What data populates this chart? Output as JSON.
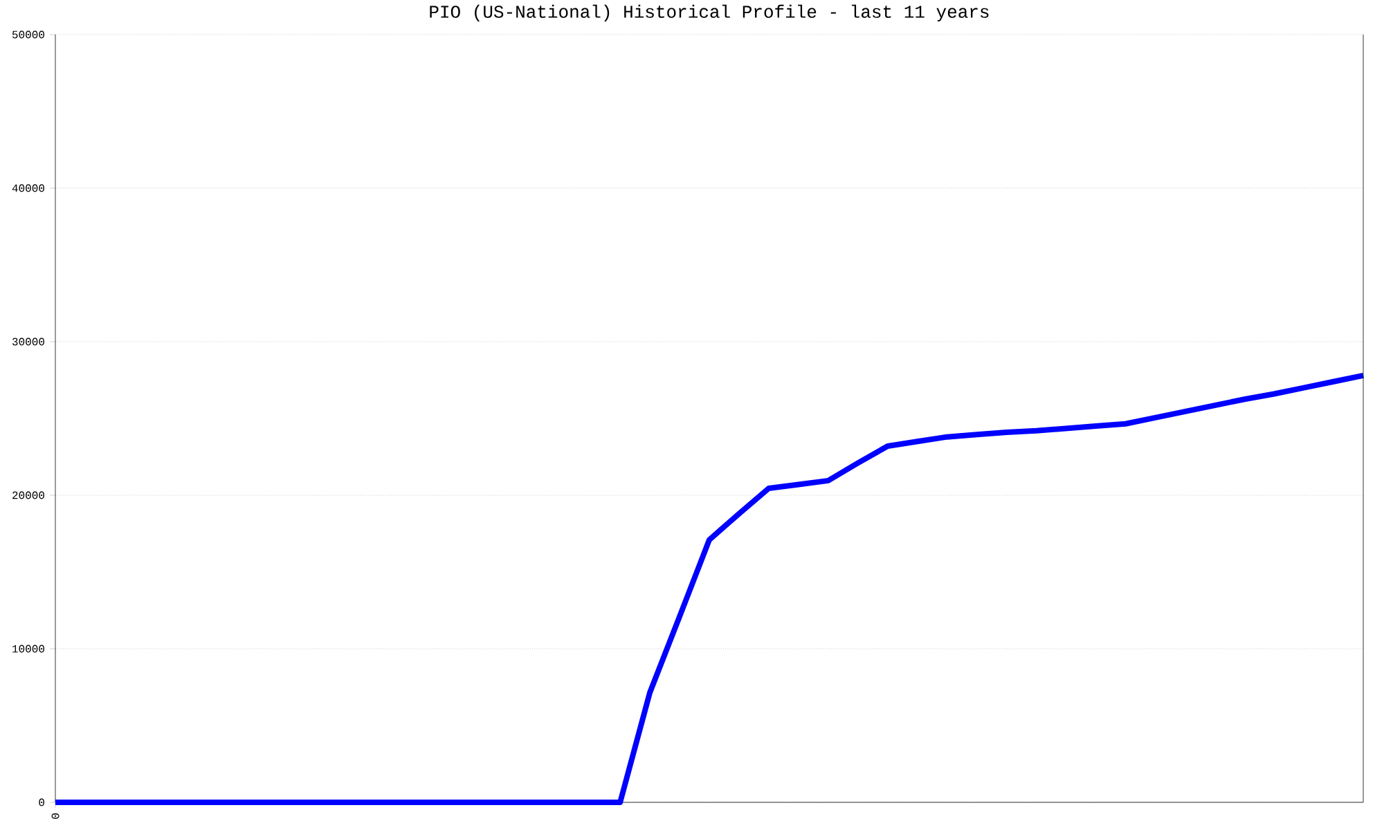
{
  "chart_data": {
    "type": "line",
    "title": "PIO (US-National) Historical Profile - last 11 years",
    "categories": [
      "0",
      null,
      null,
      null,
      null,
      null,
      null,
      null,
      null,
      null,
      null,
      null,
      null,
      null,
      null,
      null,
      null,
      null,
      null,
      null,
      null,
      null,
      null,
      null,
      null,
      null,
      null,
      null,
      null,
      null,
      null,
      null,
      null,
      null,
      null,
      null,
      null,
      null,
      null,
      null,
      null,
      null,
      null,
      null,
      null
    ],
    "series": [
      {
        "color": "#0000ff",
        "values": [
          0,
          0,
          0,
          0,
          0,
          0,
          0,
          0,
          0,
          0,
          0,
          0,
          0,
          0,
          0,
          0,
          0,
          0,
          0,
          0,
          7150,
          12100,
          17100,
          18800,
          20450,
          20700,
          20950,
          22100,
          23200,
          23500,
          23800,
          23950,
          24100,
          24200,
          24350,
          24500,
          24650,
          25050,
          25450,
          25850,
          26250,
          26600,
          27000,
          27400,
          27800
        ]
      }
    ],
    "ylim": [
      0,
      50000
    ],
    "yticks": [
      0,
      10000,
      20000,
      30000,
      40000,
      50000
    ],
    "grid": "y",
    "marker": "none",
    "line_style": "solid"
  }
}
